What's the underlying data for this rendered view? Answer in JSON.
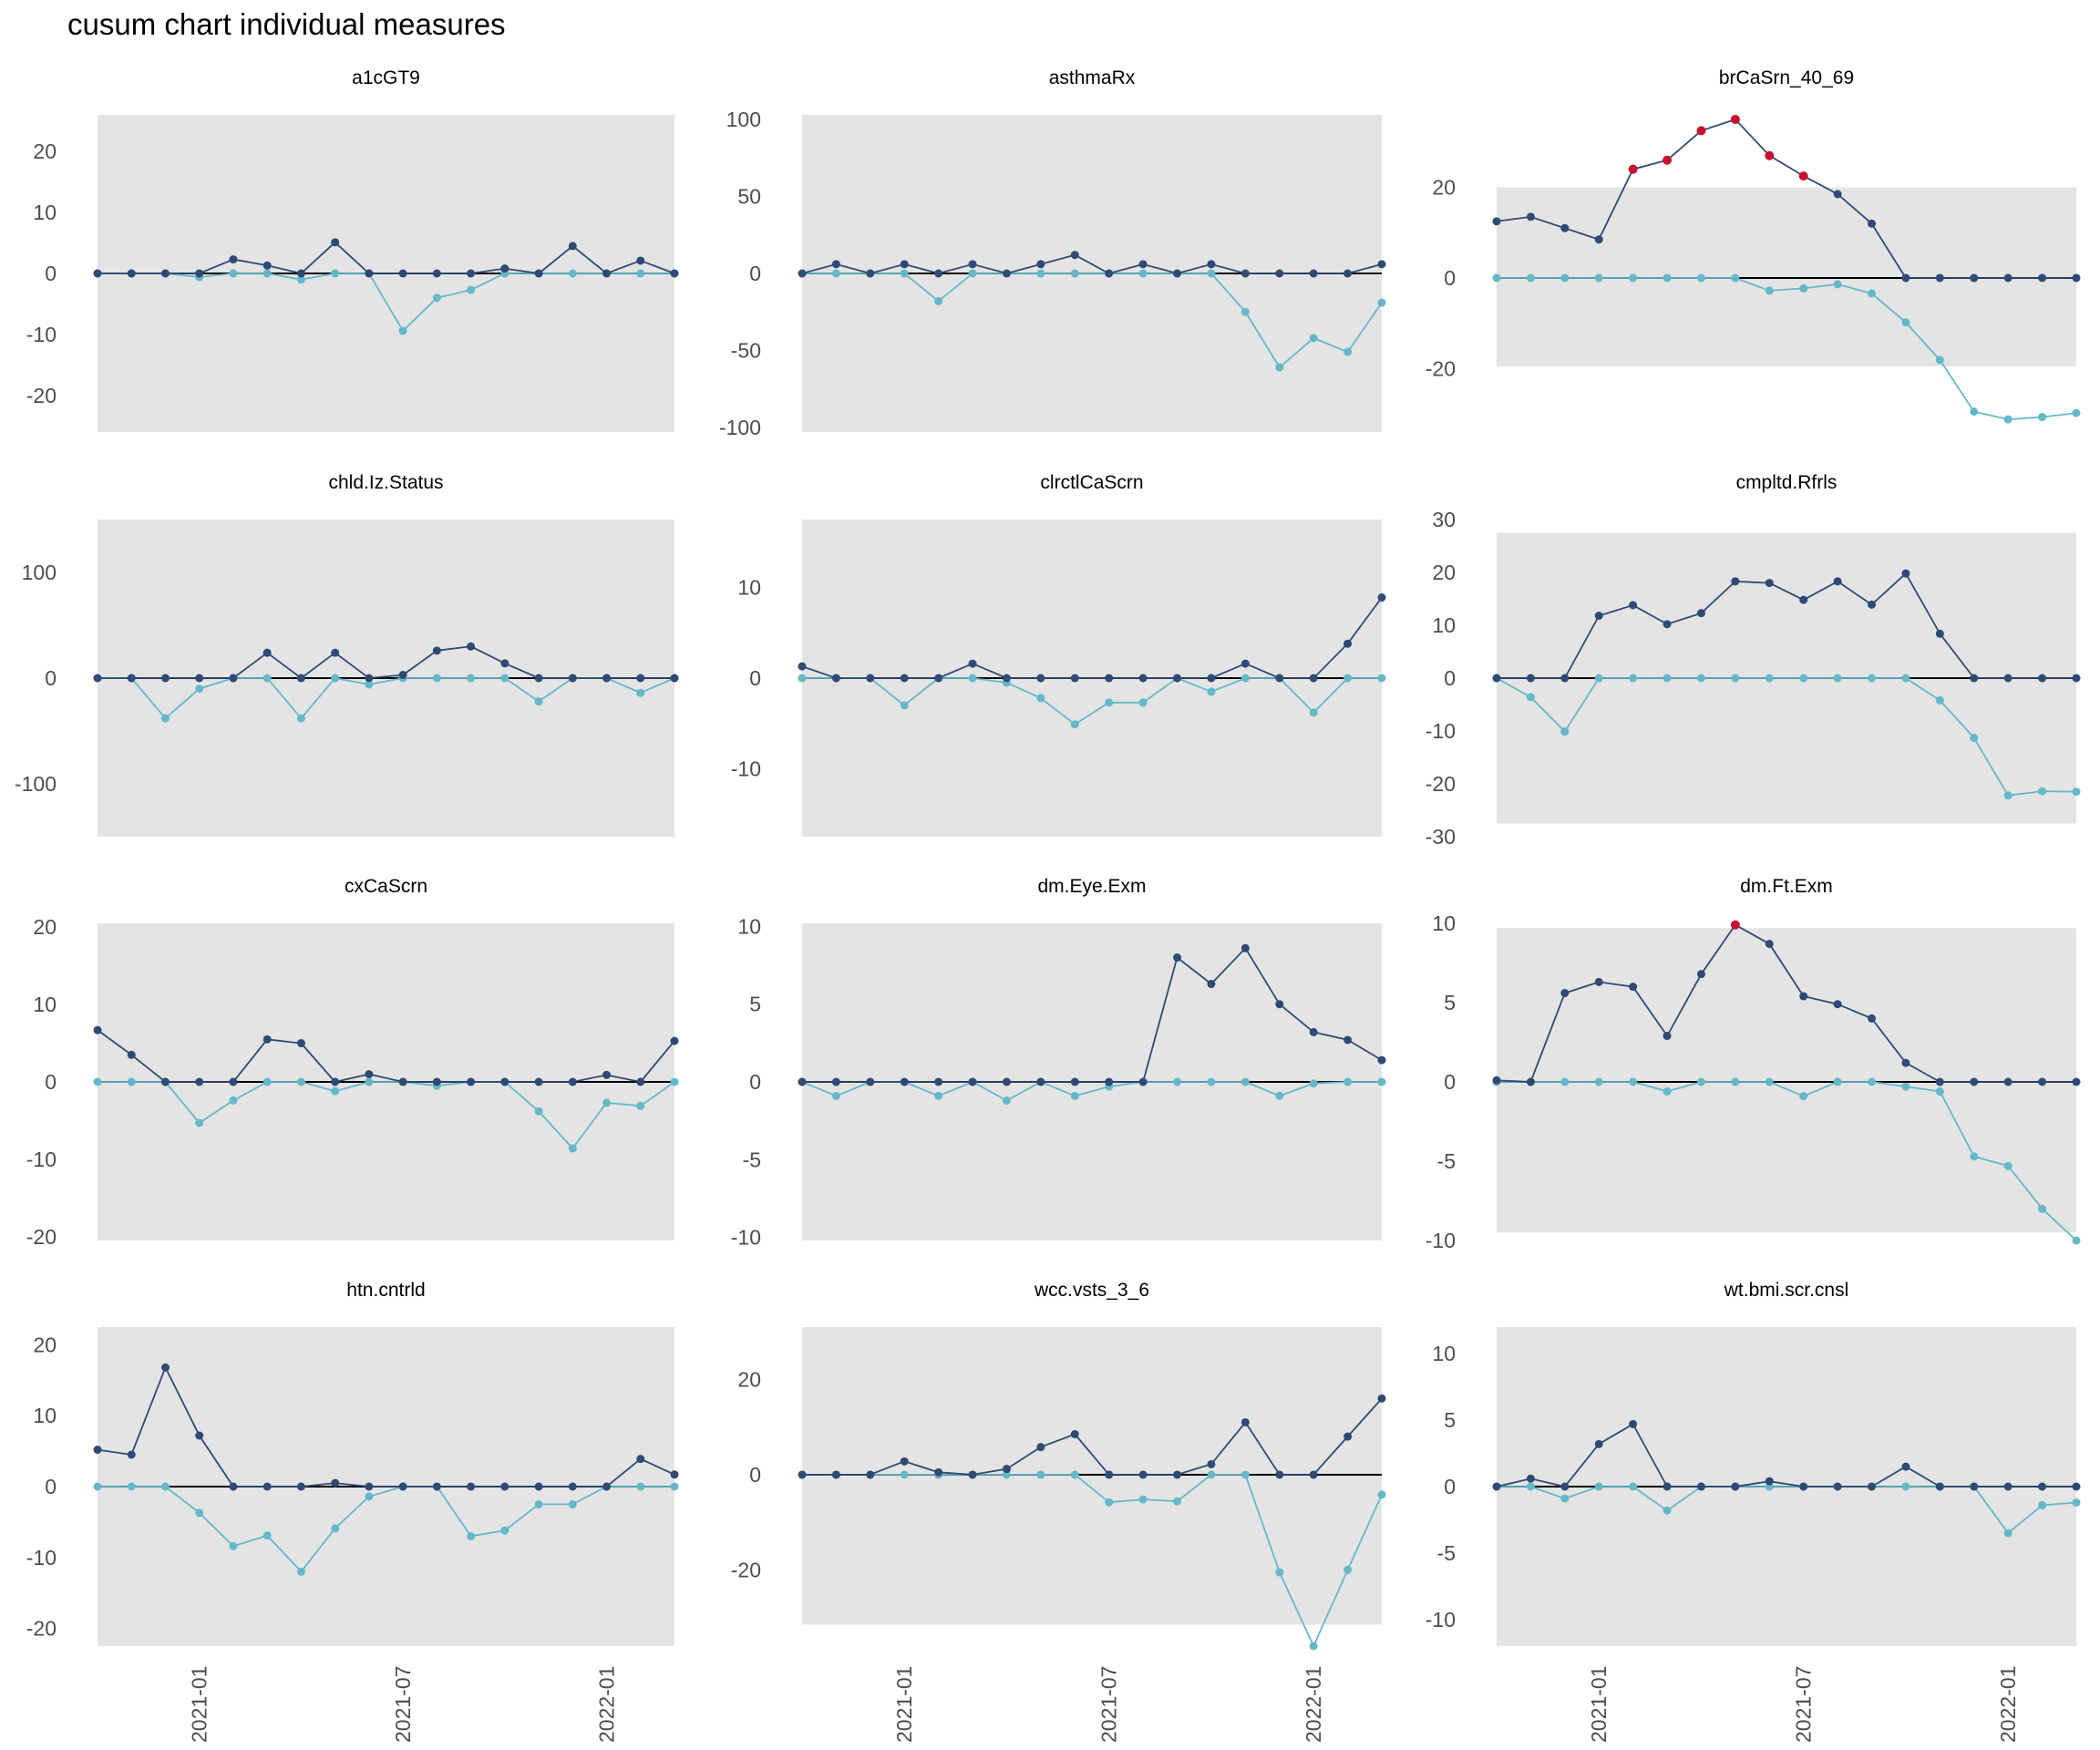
{
  "title": "cusum chart  individual measures",
  "colors": {
    "panel_bg": "#e4e4e4",
    "upper_series": "#2e4a75",
    "lower_series": "#64b8c9",
    "signal_point": "#c8102e",
    "zero_line": "#000000",
    "tick_text": "#4d4d4d"
  },
  "chart_data": [
    {
      "type": "line",
      "title": "a1cGT9",
      "ylim": [
        -26,
        26
      ],
      "band": [
        -26,
        26
      ],
      "yticks": [
        -20,
        -10,
        0,
        10,
        20
      ],
      "x": [
        "2020-10",
        "2020-11",
        "2020-12",
        "2021-01",
        "2021-02",
        "2021-03",
        "2021-04",
        "2021-05",
        "2021-06",
        "2021-07",
        "2021-08",
        "2021-09",
        "2021-10",
        "2021-11",
        "2021-12",
        "2022-01",
        "2022-02",
        "2022-03"
      ],
      "xticks": [
        "2021-01",
        "2021-07",
        "2022-01"
      ],
      "series": [
        {
          "role": "upper",
          "values": [
            0,
            0,
            0,
            0,
            2.3,
            1.3,
            0,
            5.1,
            0,
            0,
            0,
            0,
            0.8,
            0,
            4.5,
            0,
            2.1,
            0
          ]
        },
        {
          "role": "lower",
          "values": [
            0,
            0,
            0,
            -0.6,
            0,
            0,
            -1,
            0,
            0,
            -9.4,
            -4,
            -2.7,
            0,
            0,
            0,
            0,
            0,
            0
          ]
        }
      ],
      "signals": []
    },
    {
      "type": "line",
      "title": "asthmaRx",
      "ylim": [
        -103,
        103
      ],
      "band": [
        -103,
        103
      ],
      "yticks": [
        -100,
        -50,
        0,
        50,
        100
      ],
      "x": [
        "2020-10",
        "2020-11",
        "2020-12",
        "2021-01",
        "2021-02",
        "2021-03",
        "2021-04",
        "2021-05",
        "2021-06",
        "2021-07",
        "2021-08",
        "2021-09",
        "2021-10",
        "2021-11",
        "2021-12",
        "2022-01",
        "2022-02",
        "2022-03"
      ],
      "xticks": [
        "2021-01",
        "2021-07",
        "2022-01"
      ],
      "series": [
        {
          "role": "upper",
          "values": [
            0,
            6,
            0,
            6,
            0,
            6,
            0,
            6,
            12,
            0,
            6,
            0,
            6,
            0,
            0,
            0,
            0,
            6
          ]
        },
        {
          "role": "lower",
          "values": [
            0,
            0,
            0,
            0,
            -18,
            0,
            0,
            0,
            0,
            0,
            0,
            0,
            0,
            -25,
            -61,
            -42,
            -51,
            -19
          ]
        }
      ],
      "signals": []
    },
    {
      "type": "line",
      "title": "brCaSrn_40_69",
      "ylim": [
        -34,
        36
      ],
      "band": [
        -19.5,
        20
      ],
      "yticks": [
        -20,
        0,
        20
      ],
      "x": [
        "2020-10",
        "2020-11",
        "2020-12",
        "2021-01",
        "2021-02",
        "2021-03",
        "2021-04",
        "2021-05",
        "2021-06",
        "2021-07",
        "2021-08",
        "2021-09",
        "2021-10",
        "2021-11",
        "2021-12",
        "2022-01",
        "2022-02",
        "2022-03"
      ],
      "xticks": [
        "2021-01",
        "2021-07",
        "2022-01"
      ],
      "series": [
        {
          "role": "upper",
          "values": [
            12.5,
            13.5,
            11,
            8.5,
            24,
            26,
            32.5,
            35,
            27,
            22.5,
            18.5,
            12,
            0,
            0,
            0,
            0,
            0,
            0
          ]
        },
        {
          "role": "lower",
          "values": [
            0,
            0,
            0,
            0,
            0,
            0,
            0,
            0,
            -2.8,
            -2.3,
            -1.4,
            -3.4,
            -9.8,
            -18.1,
            -29.5,
            -31.2,
            -30.7,
            -29.8
          ]
        }
      ],
      "signals": [
        {
          "x": "2021-02",
          "y": 24
        },
        {
          "x": "2021-03",
          "y": 26
        },
        {
          "x": "2021-04",
          "y": 32.5
        },
        {
          "x": "2021-05",
          "y": 35
        },
        {
          "x": "2021-06",
          "y": 27
        },
        {
          "x": "2021-07",
          "y": 22.5
        }
      ]
    },
    {
      "type": "line",
      "title": "chld.Iz.Status",
      "ylim": [
        -150,
        150
      ],
      "band": [
        -150,
        150
      ],
      "yticks": [
        -100,
        0,
        100
      ],
      "x": [
        "2020-10",
        "2020-11",
        "2020-12",
        "2021-01",
        "2021-02",
        "2021-03",
        "2021-04",
        "2021-05",
        "2021-06",
        "2021-07",
        "2021-08",
        "2021-09",
        "2021-10",
        "2021-11",
        "2021-12",
        "2022-01",
        "2022-02",
        "2022-03"
      ],
      "xticks": [
        "2021-01",
        "2021-07",
        "2022-01"
      ],
      "series": [
        {
          "role": "upper",
          "values": [
            0,
            0,
            0,
            0,
            0,
            24,
            0,
            24,
            0,
            3,
            26,
            30,
            14,
            0,
            0,
            0,
            0,
            0
          ]
        },
        {
          "role": "lower",
          "values": [
            0,
            0,
            -38,
            -10,
            0,
            0,
            -38,
            0,
            -6,
            0,
            0,
            0,
            0,
            -22,
            0,
            0,
            -14,
            0
          ]
        }
      ],
      "signals": []
    },
    {
      "type": "line",
      "title": "clrctlCaScrn",
      "ylim": [
        -17.5,
        17.5
      ],
      "band": [
        -17.5,
        17.5
      ],
      "yticks": [
        -10,
        0,
        10
      ],
      "x": [
        "2020-10",
        "2020-11",
        "2020-12",
        "2021-01",
        "2021-02",
        "2021-03",
        "2021-04",
        "2021-05",
        "2021-06",
        "2021-07",
        "2021-08",
        "2021-09",
        "2021-10",
        "2021-11",
        "2021-12",
        "2022-01",
        "2022-02",
        "2022-03"
      ],
      "xticks": [
        "2021-01",
        "2021-07",
        "2022-01"
      ],
      "series": [
        {
          "role": "upper",
          "values": [
            1.3,
            0,
            0,
            0,
            0,
            1.6,
            0,
            0,
            0,
            0,
            0,
            0,
            0,
            1.6,
            0,
            0,
            3.8,
            8.9
          ]
        },
        {
          "role": "lower",
          "values": [
            0,
            0,
            0,
            -3,
            0,
            0,
            -0.5,
            -2.2,
            -5.1,
            -2.7,
            -2.7,
            0,
            -1.5,
            0,
            0,
            -3.8,
            0,
            0
          ]
        }
      ],
      "signals": []
    },
    {
      "type": "line",
      "title": "cmpltd.Rfrls",
      "ylim": [
        -30,
        30
      ],
      "band": [
        -27.5,
        27.5
      ],
      "yticks": [
        -30,
        -20,
        -10,
        0,
        10,
        20,
        30
      ],
      "x": [
        "2020-10",
        "2020-11",
        "2020-12",
        "2021-01",
        "2021-02",
        "2021-03",
        "2021-04",
        "2021-05",
        "2021-06",
        "2021-07",
        "2021-08",
        "2021-09",
        "2021-10",
        "2021-11",
        "2021-12",
        "2022-01",
        "2022-02",
        "2022-03"
      ],
      "xticks": [
        "2021-01",
        "2021-07",
        "2022-01"
      ],
      "series": [
        {
          "role": "upper",
          "values": [
            0,
            0,
            0,
            11.8,
            13.8,
            10.2,
            12.3,
            18.3,
            18,
            14.8,
            18.3,
            13.9,
            19.8,
            8.4,
            0,
            0,
            0,
            0
          ]
        },
        {
          "role": "lower",
          "values": [
            0,
            -3.6,
            -10.1,
            0,
            0,
            0,
            0,
            0,
            0,
            0,
            0,
            0,
            0,
            -4.2,
            -11.3,
            -22.2,
            -21.4,
            -21.5
          ]
        }
      ],
      "signals": []
    },
    {
      "type": "line",
      "title": "cxCaScrn",
      "ylim": [
        -20.5,
        20.5
      ],
      "band": [
        -20.5,
        20.5
      ],
      "yticks": [
        -20,
        -10,
        0,
        10,
        20
      ],
      "x": [
        "2020-10",
        "2020-11",
        "2020-12",
        "2021-01",
        "2021-02",
        "2021-03",
        "2021-04",
        "2021-05",
        "2021-06",
        "2021-07",
        "2021-08",
        "2021-09",
        "2021-10",
        "2021-11",
        "2021-12",
        "2022-01",
        "2022-02",
        "2022-03"
      ],
      "xticks": [
        "2021-01",
        "2021-07",
        "2022-01"
      ],
      "series": [
        {
          "role": "upper",
          "values": [
            6.7,
            3.5,
            0,
            0,
            0,
            5.5,
            5,
            0,
            1,
            0,
            0,
            0,
            0,
            0,
            0,
            0.9,
            0,
            5.3
          ]
        },
        {
          "role": "lower",
          "values": [
            0,
            0,
            0,
            -5.3,
            -2.4,
            0,
            0,
            -1.2,
            0,
            0,
            -0.5,
            0,
            0,
            -3.8,
            -8.6,
            -2.7,
            -3.1,
            0
          ]
        }
      ],
      "signals": []
    },
    {
      "type": "line",
      "title": "dm.Eye.Exm",
      "ylim": [
        -10.2,
        10.2
      ],
      "band": [
        -10.2,
        10.2
      ],
      "yticks": [
        -10,
        -5,
        0,
        5,
        10
      ],
      "x": [
        "2020-10",
        "2020-11",
        "2020-12",
        "2021-01",
        "2021-02",
        "2021-03",
        "2021-04",
        "2021-05",
        "2021-06",
        "2021-07",
        "2021-08",
        "2021-09",
        "2021-10",
        "2021-11",
        "2021-12",
        "2022-01",
        "2022-02",
        "2022-03"
      ],
      "xticks": [
        "2021-01",
        "2021-07",
        "2022-01"
      ],
      "series": [
        {
          "role": "upper",
          "values": [
            0,
            0,
            0,
            0,
            0,
            0,
            0,
            0,
            0,
            0,
            0,
            8,
            6.3,
            8.6,
            5,
            3.2,
            2.7,
            1.4
          ]
        },
        {
          "role": "lower",
          "values": [
            0,
            -0.9,
            0,
            0,
            -0.9,
            0,
            -1.2,
            0,
            -0.9,
            -0.3,
            0,
            0,
            0,
            0,
            -0.9,
            -0.1,
            0,
            0
          ]
        }
      ],
      "signals": []
    },
    {
      "type": "line",
      "title": "dm.Ft.Exm",
      "ylim": [
        -10,
        10
      ],
      "band": [
        -9.5,
        9.7
      ],
      "yticks": [
        -10,
        -5,
        0,
        5,
        10
      ],
      "x": [
        "2020-10",
        "2020-11",
        "2020-12",
        "2021-01",
        "2021-02",
        "2021-03",
        "2021-04",
        "2021-05",
        "2021-06",
        "2021-07",
        "2021-08",
        "2021-09",
        "2021-10",
        "2021-11",
        "2021-12",
        "2022-01",
        "2022-02",
        "2022-03"
      ],
      "xticks": [
        "2021-01",
        "2021-07",
        "2022-01"
      ],
      "series": [
        {
          "role": "upper",
          "values": [
            0.1,
            0,
            5.6,
            6.3,
            6,
            2.9,
            6.8,
            9.9,
            8.7,
            5.4,
            4.9,
            4,
            1.2,
            0,
            0,
            0,
            0,
            0
          ]
        },
        {
          "role": "lower",
          "values": [
            0,
            0,
            0,
            0,
            0,
            -0.6,
            0,
            0,
            0,
            -0.9,
            0,
            0,
            -0.3,
            -0.6,
            -4.7,
            -5.3,
            -8,
            -10
          ]
        }
      ],
      "signals": [
        {
          "x": "2021-05",
          "y": 9.9
        }
      ]
    },
    {
      "type": "line",
      "title": "htn.cntrld",
      "ylim": [
        -22.5,
        22.5
      ],
      "band": [
        -22.5,
        22.5
      ],
      "yticks": [
        -20,
        -10,
        0,
        10,
        20
      ],
      "x": [
        "2020-10",
        "2020-11",
        "2020-12",
        "2021-01",
        "2021-02",
        "2021-03",
        "2021-04",
        "2021-05",
        "2021-06",
        "2021-07",
        "2021-08",
        "2021-09",
        "2021-10",
        "2021-11",
        "2021-12",
        "2022-01",
        "2022-02",
        "2022-03"
      ],
      "xticks": [
        "2021-01",
        "2021-07",
        "2022-01"
      ],
      "series": [
        {
          "role": "upper",
          "values": [
            5.2,
            4.5,
            16.8,
            7.2,
            0,
            0,
            0,
            0.5,
            0,
            0,
            0,
            0,
            0,
            0,
            0,
            0,
            3.9,
            1.7
          ]
        },
        {
          "role": "lower",
          "values": [
            0,
            0,
            0,
            -3.7,
            -8.4,
            -6.9,
            -12,
            -5.9,
            -1.4,
            0,
            0,
            -7,
            -6.2,
            -2.5,
            -2.5,
            0,
            0,
            0
          ]
        }
      ],
      "signals": []
    },
    {
      "type": "line",
      "title": "wcc.vsts_3_6",
      "ylim": [
        -36,
        31
      ],
      "band": [
        -31.5,
        31
      ],
      "yticks": [
        -20,
        0,
        20
      ],
      "x": [
        "2020-10",
        "2020-11",
        "2020-12",
        "2021-01",
        "2021-02",
        "2021-03",
        "2021-04",
        "2021-05",
        "2021-06",
        "2021-07",
        "2021-08",
        "2021-09",
        "2021-10",
        "2021-11",
        "2021-12",
        "2022-01",
        "2022-02",
        "2022-03"
      ],
      "xticks": [
        "2021-01",
        "2021-07",
        "2022-01"
      ],
      "series": [
        {
          "role": "upper",
          "values": [
            0,
            0,
            0,
            2.8,
            0.5,
            0,
            1.2,
            5.8,
            8.5,
            0,
            0,
            0,
            2.2,
            11,
            0,
            0,
            8,
            16
          ]
        },
        {
          "role": "lower",
          "values": [
            0,
            0,
            0,
            0,
            0,
            0,
            0,
            0,
            0,
            -5.8,
            -5.2,
            -5.6,
            0,
            0,
            -20.5,
            -36,
            -20,
            -4.2
          ]
        }
      ],
      "signals": []
    },
    {
      "type": "line",
      "title": "wt.bmi.scr.cnsl",
      "ylim": [
        -12,
        12
      ],
      "band": [
        -12,
        12
      ],
      "yticks": [
        -10,
        -5,
        0,
        5,
        10
      ],
      "x": [
        "2020-10",
        "2020-11",
        "2020-12",
        "2021-01",
        "2021-02",
        "2021-03",
        "2021-04",
        "2021-05",
        "2021-06",
        "2021-07",
        "2021-08",
        "2021-09",
        "2021-10",
        "2021-11",
        "2021-12",
        "2022-01",
        "2022-02",
        "2022-03"
      ],
      "xticks": [
        "2021-01",
        "2021-07",
        "2022-01"
      ],
      "series": [
        {
          "role": "upper",
          "values": [
            0,
            0.6,
            0,
            3.2,
            4.7,
            0,
            0,
            0,
            0.4,
            0,
            0,
            0,
            1.5,
            0,
            0,
            0,
            0,
            0
          ]
        },
        {
          "role": "lower",
          "values": [
            0,
            0,
            -0.9,
            0,
            0,
            -1.8,
            0,
            0,
            0,
            0,
            0,
            0,
            0,
            0,
            0,
            -3.5,
            -1.4,
            -1.2
          ]
        }
      ],
      "signals": []
    }
  ]
}
